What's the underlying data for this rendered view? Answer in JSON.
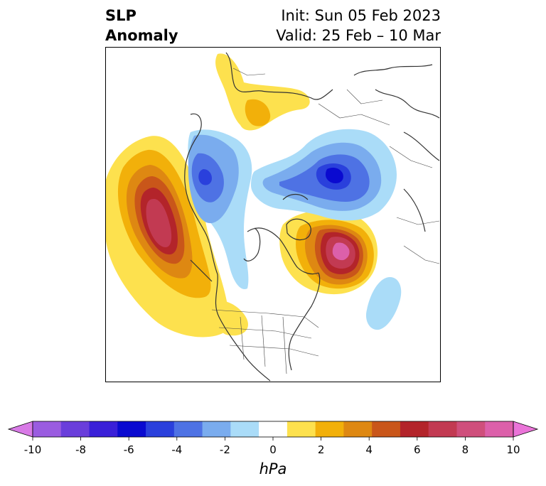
{
  "title": {
    "left_line1": "SLP",
    "left_line2": "Anomaly",
    "right_line1": "Init: Sun 05 Feb 2023",
    "right_line2": "Valid: 25 Feb – 10 Mar"
  },
  "colorbar": {
    "ticks": [
      "-10",
      "-8",
      "-6",
      "-4",
      "-2",
      "0",
      "2",
      "4",
      "6",
      "8",
      "10"
    ],
    "unit_label": "hPa",
    "colors": [
      "#d87ae6",
      "#9a5ce0",
      "#6a3edb",
      "#3a20d8",
      "#0a0ad0",
      "#2a40dc",
      "#4e72e4",
      "#7aacee",
      "#aadcf8",
      "#ffffff",
      "#fde14e",
      "#f2b00a",
      "#de8812",
      "#c9561a",
      "#b3242a",
      "#c23a52",
      "#cf4f7c",
      "#dc60aa",
      "#ea74d8"
    ]
  },
  "map": {
    "anomalies": [
      {
        "region": "north-pacific-high",
        "sign": "positive",
        "peak_hpa": 8
      },
      {
        "region": "labrador-greenland-high",
        "sign": "positive",
        "peak_hpa": 8
      },
      {
        "region": "siberia-eurasia-high",
        "sign": "positive",
        "peak_hpa": 2
      },
      {
        "region": "western-us-high",
        "sign": "positive",
        "peak_hpa": 2
      },
      {
        "region": "east-asia-low",
        "sign": "negative",
        "peak_hpa": -6
      },
      {
        "region": "barents-scandinavia-low",
        "sign": "negative",
        "peak_hpa": -6
      },
      {
        "region": "western-canada-low",
        "sign": "negative",
        "peak_hpa": -2
      },
      {
        "region": "north-atlantic-low",
        "sign": "negative",
        "peak_hpa": -2
      }
    ]
  }
}
